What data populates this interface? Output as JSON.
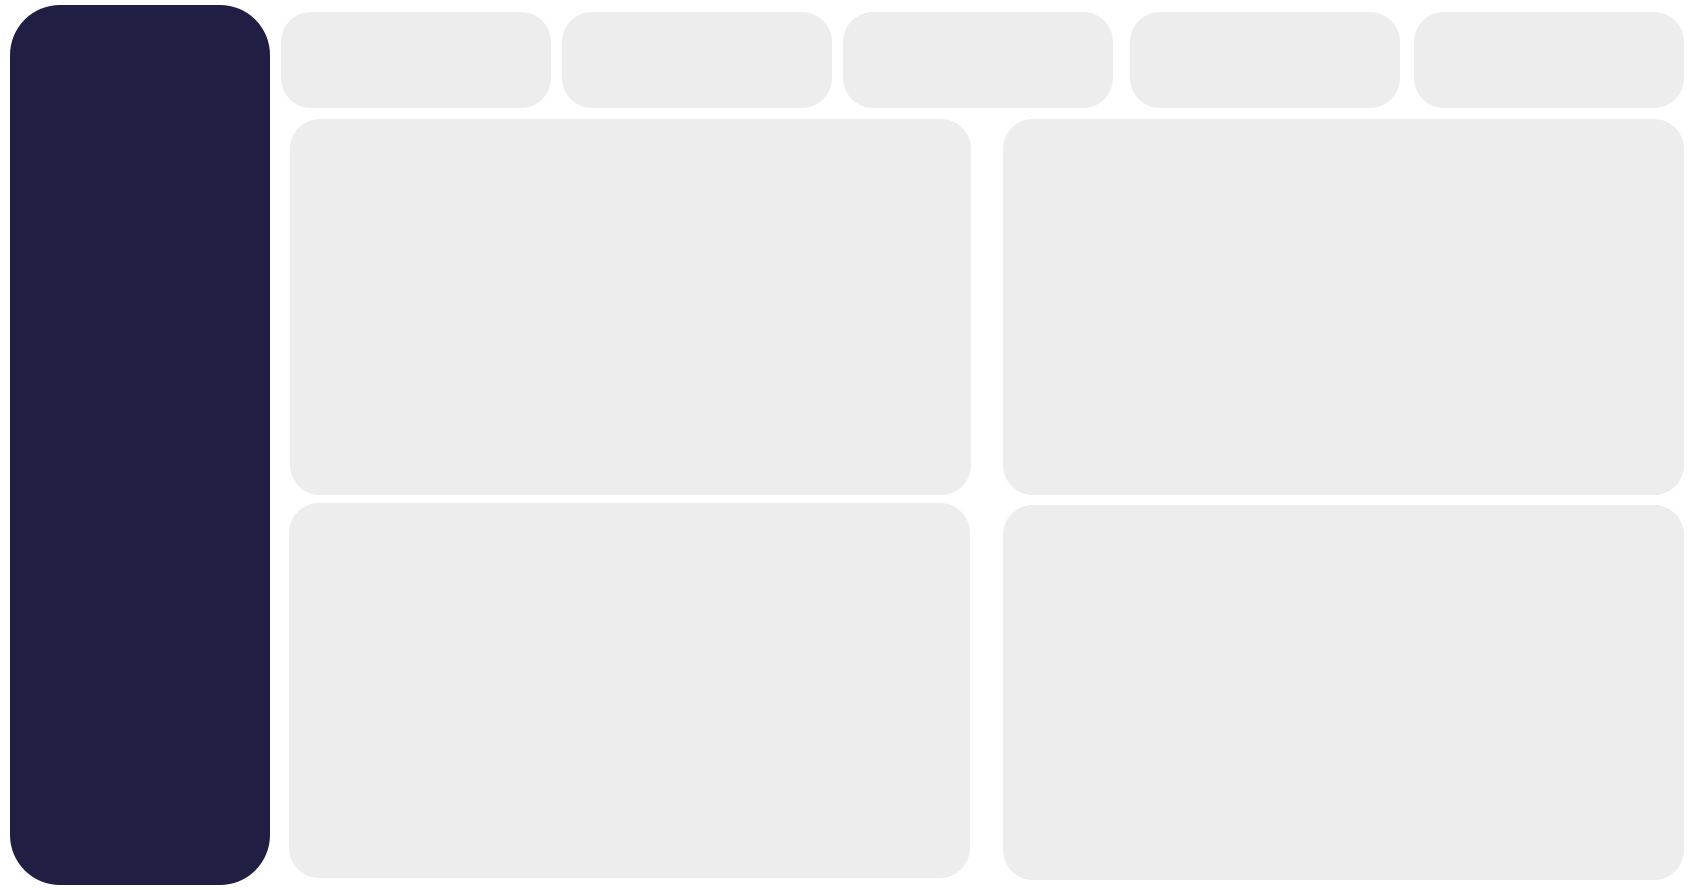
{
  "colors": {
    "page_background": "#ffffff",
    "sidebar_background": "#201e42",
    "card_background": "#ededed"
  },
  "stat_cards": [
    {
      "id": "stat-card-1"
    },
    {
      "id": "stat-card-2"
    },
    {
      "id": "stat-card-3"
    },
    {
      "id": "stat-card-4"
    },
    {
      "id": "stat-card-5"
    }
  ],
  "panels": [
    {
      "id": "panel-top-left"
    },
    {
      "id": "panel-top-right"
    },
    {
      "id": "panel-bottom-left"
    },
    {
      "id": "panel-bottom-right"
    }
  ]
}
